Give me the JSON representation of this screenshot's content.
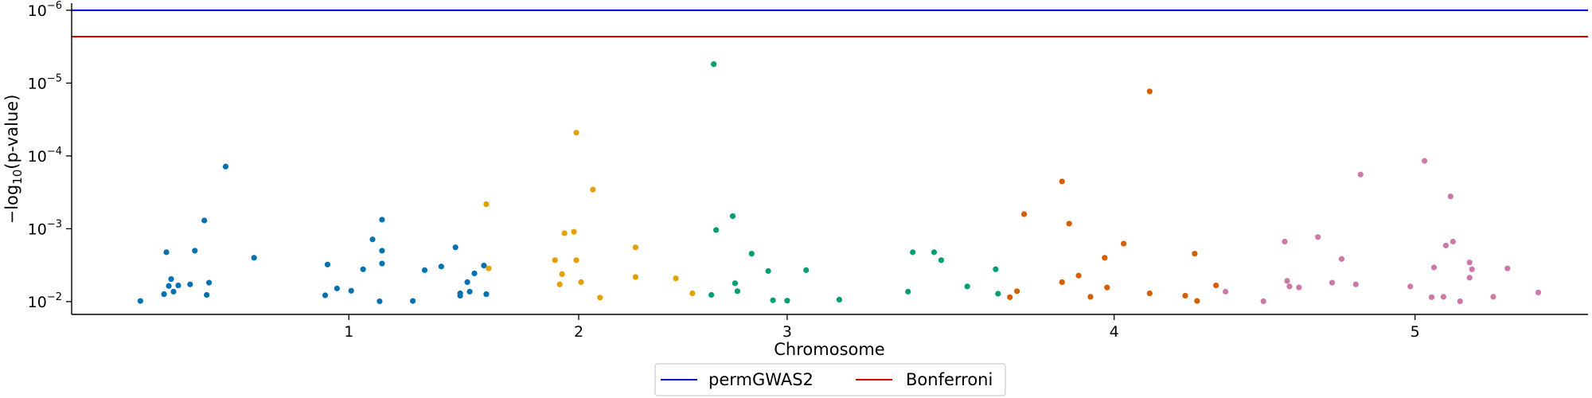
{
  "chart_data": {
    "type": "scatter",
    "title": "",
    "xlabel": "Chromosome",
    "ylabel_prefix": "−log",
    "ylabel_sub": "10",
    "ylabel_suffix": "(p-value)",
    "y_scale": "log",
    "y_inverted": true,
    "ylim": [
      0.015,
      8e-07
    ],
    "xlim": [
      0,
      6.4
    ],
    "grid": false,
    "legend_position": "bottom-center",
    "x_ticks": [
      {
        "value": 1.17,
        "label": "1"
      },
      {
        "value": 2.14,
        "label": "2"
      },
      {
        "value": 3.02,
        "label": "3"
      },
      {
        "value": 4.4,
        "label": "4"
      },
      {
        "value": 5.67,
        "label": "5"
      }
    ],
    "y_ticks": [
      {
        "value": 1e-06,
        "base": "10",
        "exp": "−6"
      },
      {
        "value": 1e-05,
        "base": "10",
        "exp": "−5"
      },
      {
        "value": 0.0001,
        "base": "10",
        "exp": "−4"
      },
      {
        "value": 0.001,
        "base": "10",
        "exp": "−3"
      },
      {
        "value": 0.01,
        "base": "10",
        "exp": "−2"
      }
    ],
    "thresholds": [
      {
        "name": "permGWAS2",
        "value": 1e-06,
        "color": "#0000cc"
      },
      {
        "name": "Bonferroni",
        "value": 2.3e-06,
        "color": "#dd0000"
      }
    ],
    "series": [
      {
        "color": "#0072b2",
        "points": [
          [
            0.29,
            0.0098
          ],
          [
            0.39,
            0.0079
          ],
          [
            0.4,
            0.0021
          ],
          [
            0.41,
            0.0061
          ],
          [
            0.42,
            0.0049
          ],
          [
            0.43,
            0.0073
          ],
          [
            0.45,
            0.006
          ],
          [
            0.5,
            0.0058
          ],
          [
            0.52,
            0.002
          ],
          [
            0.56,
            0.00077
          ],
          [
            0.57,
            0.0081
          ],
          [
            0.58,
            0.0055
          ],
          [
            0.65,
            0.00014
          ],
          [
            0.77,
            0.0025
          ],
          [
            1.07,
            0.0082
          ],
          [
            1.08,
            0.0031
          ],
          [
            1.12,
            0.0066
          ],
          [
            1.18,
            0.0071
          ],
          [
            1.23,
            0.0036
          ],
          [
            1.27,
            0.0014
          ],
          [
            1.3,
            0.0099
          ],
          [
            1.31,
            0.00075
          ],
          [
            1.31,
            0.003
          ],
          [
            1.31,
            0.002
          ],
          [
            1.44,
            0.0098
          ],
          [
            1.49,
            0.0037
          ],
          [
            1.56,
            0.0033
          ],
          [
            1.62,
            0.0018
          ],
          [
            1.64,
            0.0077
          ],
          [
            1.64,
            0.0083
          ],
          [
            1.67,
            0.0054
          ],
          [
            1.68,
            0.0073
          ],
          [
            1.7,
            0.0041
          ],
          [
            1.74,
            0.0032
          ],
          [
            1.75,
            0.0079
          ]
        ]
      },
      {
        "color": "#e69f00",
        "points": [
          [
            1.75,
            0.00046
          ],
          [
            1.76,
            0.0035
          ],
          [
            2.04,
            0.0027
          ],
          [
            2.06,
            0.0058
          ],
          [
            2.07,
            0.0042
          ],
          [
            2.08,
            0.00115
          ],
          [
            2.12,
            0.0011
          ],
          [
            2.13,
            0.0027
          ],
          [
            2.13,
            4.8e-05
          ],
          [
            2.15,
            0.0054
          ],
          [
            2.2,
            0.00029
          ],
          [
            2.23,
            0.0088
          ],
          [
            2.38,
            0.0018
          ],
          [
            2.38,
            0.0046
          ],
          [
            2.55,
            0.0048
          ],
          [
            2.62,
            0.0077
          ]
        ]
      },
      {
        "color": "#009e73",
        "points": [
          [
            2.7,
            0.0081
          ],
          [
            2.71,
            5.5e-06
          ],
          [
            2.72,
            0.00104
          ],
          [
            2.79,
            0.00067
          ],
          [
            2.8,
            0.0056
          ],
          [
            2.81,
            0.0072
          ],
          [
            2.87,
            0.0022
          ],
          [
            2.94,
            0.0038
          ],
          [
            2.96,
            0.0096
          ],
          [
            3.02,
            0.0097
          ],
          [
            3.1,
            0.0037
          ],
          [
            3.24,
            0.0094
          ],
          [
            3.53,
            0.0073
          ],
          [
            3.55,
            0.0021
          ],
          [
            3.64,
            0.0021
          ],
          [
            3.67,
            0.0027
          ],
          [
            3.78,
            0.0062
          ],
          [
            3.9,
            0.0036
          ],
          [
            3.91,
            0.0078
          ]
        ]
      },
      {
        "color": "#d55e00",
        "points": [
          [
            3.96,
            0.0087
          ],
          [
            3.99,
            0.0072
          ],
          [
            4.02,
            0.00063
          ],
          [
            4.18,
            0.000224
          ],
          [
            4.18,
            0.0054
          ],
          [
            4.21,
            0.00085
          ],
          [
            4.25,
            0.0044
          ],
          [
            4.3,
            0.0086
          ],
          [
            4.36,
            0.0025
          ],
          [
            4.37,
            0.0064
          ],
          [
            4.44,
            0.0016
          ],
          [
            4.55,
            1.3e-05
          ],
          [
            4.55,
            0.0077
          ],
          [
            4.7,
            0.0083
          ],
          [
            4.74,
            0.0022
          ],
          [
            4.75,
            0.0098
          ],
          [
            4.83,
            0.006
          ]
        ]
      },
      {
        "color": "#cc79a7",
        "points": [
          [
            4.87,
            0.0073
          ],
          [
            5.03,
            0.0099
          ],
          [
            5.12,
            0.0015
          ],
          [
            5.13,
            0.0052
          ],
          [
            5.14,
            0.0062
          ],
          [
            5.18,
            0.0064
          ],
          [
            5.26,
            0.0013
          ],
          [
            5.32,
            0.0055
          ],
          [
            5.36,
            0.0026
          ],
          [
            5.42,
            0.0058
          ],
          [
            5.44,
            0.00018
          ],
          [
            5.65,
            0.0062
          ],
          [
            5.71,
            0.000117
          ],
          [
            5.74,
            0.0087
          ],
          [
            5.75,
            0.0034
          ],
          [
            5.79,
            0.0086
          ],
          [
            5.8,
            0.0017
          ],
          [
            5.82,
            0.00036
          ],
          [
            5.83,
            0.0015
          ],
          [
            5.86,
            0.0099
          ],
          [
            5.9,
            0.0029
          ],
          [
            5.9,
            0.0047
          ],
          [
            5.91,
            0.0036
          ],
          [
            6.0,
            0.0086
          ],
          [
            6.06,
            0.0035
          ],
          [
            6.19,
            0.0075
          ]
        ]
      }
    ]
  }
}
